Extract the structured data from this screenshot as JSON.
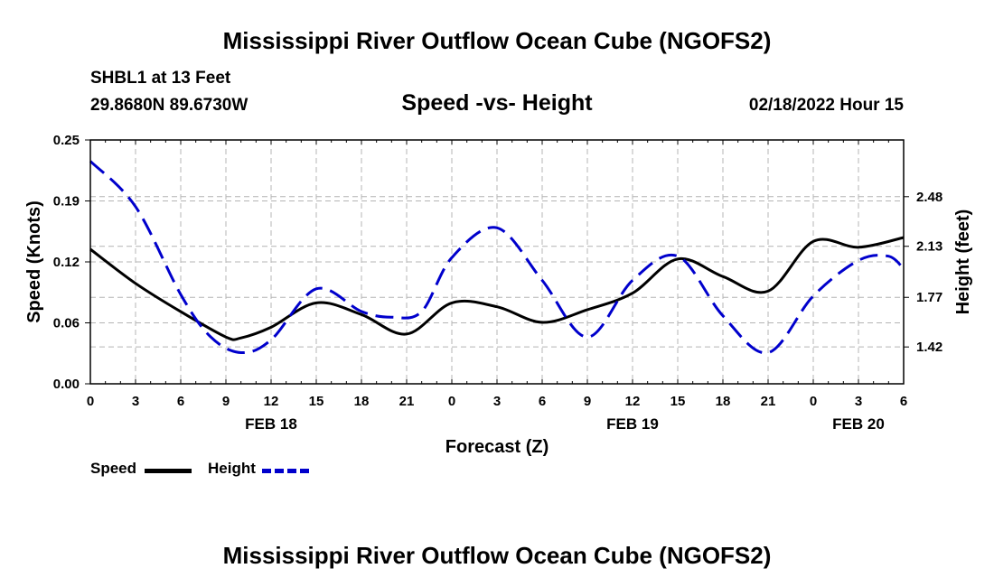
{
  "header": {
    "title": "Mississippi River Outflow Ocean Cube (NGOFS2)",
    "station": "SHBL1 at 13 Feet",
    "coords": "29.8680N  89.6730W",
    "subtitle": "Speed -vs- Height",
    "datetime": "02/18/2022 Hour 15"
  },
  "footer": {
    "title": "Mississippi River Outflow Ocean Cube (NGOFS2)"
  },
  "chart_data": {
    "type": "line",
    "title": "Speed -vs- Height",
    "xlabel": "Forecast (Z)",
    "ylabel": "Speed (Knots)",
    "y2label": "Height (feet)",
    "x_unit": "hours since 02/18/2022 00Z",
    "xlim": [
      0,
      54
    ],
    "ylim": [
      0.0,
      0.25
    ],
    "y2lim": [
      1.16,
      2.88
    ],
    "x_ticks": [
      0,
      3,
      6,
      9,
      12,
      15,
      18,
      21,
      24,
      27,
      30,
      33,
      36,
      39,
      42,
      45,
      48,
      51,
      54
    ],
    "x_tick_labels": [
      "0",
      "3",
      "6",
      "9",
      "12",
      "15",
      "18",
      "21",
      "0",
      "3",
      "6",
      "9",
      "12",
      "15",
      "18",
      "21",
      "0",
      "3",
      "6"
    ],
    "date_labels": [
      {
        "x": 12,
        "label": "FEB 18"
      },
      {
        "x": 36,
        "label": "FEB 19"
      },
      {
        "x": 51,
        "label": "FEB 20"
      }
    ],
    "y_ticks": [
      0.0,
      0.0625,
      0.125,
      0.1875,
      0.25
    ],
    "y_tick_labels": [
      "0.00",
      "0.06",
      "0.12",
      "0.19",
      "0.25"
    ],
    "y2_ticks": [
      1.42,
      1.77,
      2.13,
      2.48
    ],
    "y2_tick_labels": [
      "1.42",
      "1.77",
      "2.13",
      "2.48"
    ],
    "grid": true,
    "legend_position": "bottom-left",
    "series": [
      {
        "name": "Speed",
        "axis": "left",
        "color": "#000000",
        "dash": "solid",
        "x": [
          0,
          3,
          6,
          9,
          10,
          12,
          15,
          18,
          21,
          24,
          27,
          30,
          33,
          36,
          39,
          42,
          45,
          48,
          51,
          54
        ],
        "values": [
          0.138,
          0.103,
          0.074,
          0.048,
          0.047,
          0.058,
          0.083,
          0.071,
          0.051,
          0.083,
          0.079,
          0.063,
          0.076,
          0.093,
          0.128,
          0.11,
          0.095,
          0.146,
          0.14,
          0.15
        ]
      },
      {
        "name": "Height",
        "axis": "right",
        "color": "#0000cc",
        "dash": "dashed",
        "x": [
          0,
          3,
          6,
          8,
          10,
          12,
          15,
          18,
          20,
          22,
          24,
          27,
          30,
          33,
          36,
          39,
          42,
          45,
          48,
          51,
          53,
          54
        ],
        "values": [
          2.73,
          2.41,
          1.79,
          1.49,
          1.38,
          1.47,
          1.83,
          1.67,
          1.63,
          1.67,
          2.05,
          2.26,
          1.89,
          1.49,
          1.89,
          2.06,
          1.64,
          1.38,
          1.78,
          2.03,
          2.06,
          1.97
        ]
      }
    ]
  },
  "legend": [
    {
      "label": "Speed",
      "color": "#000000",
      "dash": "solid"
    },
    {
      "label": "Height",
      "color": "#0000cc",
      "dash": "dashed"
    }
  ]
}
